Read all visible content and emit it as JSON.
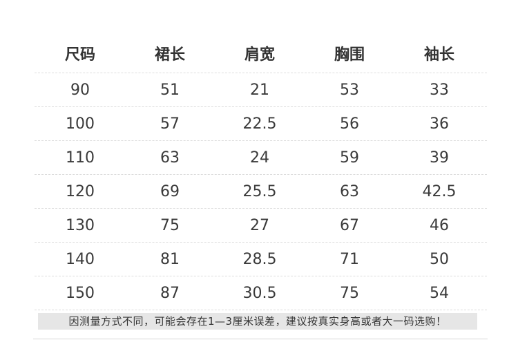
{
  "table": {
    "headers": [
      "尺码",
      "裙长",
      "肩宽",
      "胸围",
      "袖长"
    ],
    "rows": [
      [
        "90",
        "51",
        "21",
        "53",
        "33"
      ],
      [
        "100",
        "57",
        "22.5",
        "56",
        "36"
      ],
      [
        "110",
        "63",
        "24",
        "59",
        "39"
      ],
      [
        "120",
        "69",
        "25.5",
        "63",
        "42.5"
      ],
      [
        "130",
        "75",
        "27",
        "67",
        "46"
      ],
      [
        "140",
        "81",
        "28.5",
        "71",
        "50"
      ],
      [
        "150",
        "87",
        "30.5",
        "75",
        "54"
      ]
    ]
  },
  "note": "因测量方式不同，可能会存在1—3厘米误差，建议按真实身高或者大一码选购！"
}
